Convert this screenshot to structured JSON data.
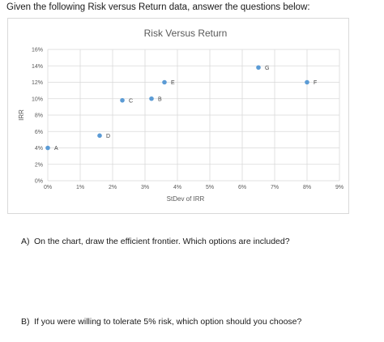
{
  "intro_text": "Given the following Risk versus Return data, answer the questions below:",
  "questions": [
    {
      "letter": "A)",
      "text": "On the chart, draw the efficient frontier.  Which options are included?"
    },
    {
      "letter": "B)",
      "text": "If you were willing to tolerate 5% risk, which option should you choose?"
    }
  ],
  "chart_data": {
    "type": "scatter",
    "title": "Risk Versus Return",
    "xlabel": "StDev of IRR",
    "ylabel": "IRR",
    "xlim": [
      0,
      9
    ],
    "ylim": [
      0,
      16
    ],
    "x_ticks": [
      "0%",
      "1%",
      "2%",
      "3%",
      "4%",
      "5%",
      "6%",
      "7%",
      "8%",
      "9%"
    ],
    "y_ticks": [
      "0%",
      "2%",
      "4%",
      "6%",
      "8%",
      "10%",
      "12%",
      "14%",
      "16%"
    ],
    "grid": true,
    "marker_color": "#5b9bd5",
    "points": [
      {
        "label": "A",
        "x": 0.0,
        "y": 4.0
      },
      {
        "label": "B",
        "x": 3.2,
        "y": 10.0
      },
      {
        "label": "C",
        "x": 2.3,
        "y": 9.8
      },
      {
        "label": "D",
        "x": 1.6,
        "y": 5.5
      },
      {
        "label": "E",
        "x": 3.6,
        "y": 12.0
      },
      {
        "label": "F",
        "x": 8.0,
        "y": 12.0
      },
      {
        "label": "G",
        "x": 6.5,
        "y": 13.8
      }
    ]
  }
}
